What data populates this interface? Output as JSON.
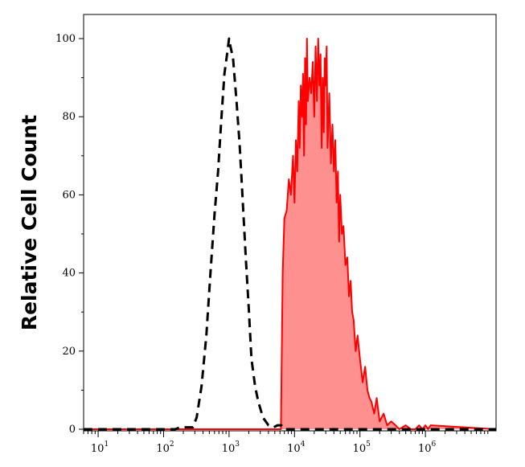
{
  "chart_data": {
    "type": "area",
    "title": "",
    "xlabel": "",
    "ylabel": "Relative Cell Count",
    "x_scale": "log",
    "xlim": [
      6,
      12000000
    ],
    "ylim": [
      0,
      100
    ],
    "x_ticks": [
      {
        "base": "10",
        "exp": "1"
      },
      {
        "base": "10",
        "exp": "2"
      },
      {
        "base": "10",
        "exp": "3"
      },
      {
        "base": "10",
        "exp": "4"
      },
      {
        "base": "10",
        "exp": "5"
      },
      {
        "base": "10",
        "exp": "6"
      }
    ],
    "y_ticks": [
      "0",
      "20",
      "40",
      "60",
      "80",
      "100"
    ],
    "grid": false,
    "legend": "none",
    "series": [
      {
        "style": "dashed",
        "color": "#000000",
        "fill": "none",
        "x": [
          6,
          150,
          180,
          220,
          280,
          320,
          380,
          450,
          520,
          600,
          680,
          760,
          850,
          950,
          1000,
          1050,
          1150,
          1300,
          1450,
          1600,
          1800,
          2000,
          2200,
          2500,
          2800,
          3300,
          4000,
          4800,
          5500,
          6300,
          7000,
          8000,
          12000000
        ],
        "y": [
          0,
          0,
          0.5,
          0.5,
          0.5,
          3,
          11,
          24,
          40,
          55,
          66,
          79,
          91,
          97,
          100,
          98,
          95,
          84,
          73,
          60,
          44,
          31,
          18,
          11,
          7,
          3,
          1,
          0.5,
          1,
          1,
          0,
          0,
          0
        ]
      },
      {
        "style": "solid",
        "color": "#ff0000",
        "fill": "#ff9090",
        "x": [
          6,
          6200,
          6600,
          7000,
          7600,
          8200,
          8800,
          9500,
          10000,
          10500,
          11000,
          11600,
          12000,
          12500,
          13000,
          13500,
          14000,
          14500,
          15000,
          15500,
          16000,
          17000,
          18000,
          19000,
          20000,
          21000,
          22000,
          23000,
          24000,
          25000,
          26000,
          27000,
          28000,
          29000,
          30000,
          31000,
          32000,
          34000,
          36000,
          38000,
          40000,
          42000,
          44000,
          46000,
          48000,
          50000,
          53000,
          56000,
          60000,
          64000,
          68000,
          72000,
          76000,
          80000,
          86000,
          92000,
          100000,
          110000,
          120000,
          130000,
          140000,
          150000,
          165000,
          180000,
          200000,
          230000,
          260000,
          300000,
          350000,
          400000,
          500000,
          600000,
          700000,
          800000,
          900000,
          1000000,
          1100000,
          1200000,
          12000000
        ],
        "y": [
          0,
          0,
          40,
          54,
          56,
          64,
          60,
          70,
          58,
          74,
          66,
          84,
          72,
          88,
          80,
          91,
          70,
          95,
          78,
          100,
          84,
          90,
          86,
          94,
          80,
          98,
          84,
          100,
          88,
          96,
          72,
          90,
          76,
          95,
          88,
          98,
          72,
          86,
          68,
          78,
          66,
          74,
          58,
          66,
          48,
          60,
          50,
          52,
          42,
          44,
          34,
          38,
          30,
          28,
          20,
          24,
          18,
          12,
          16,
          10,
          8,
          7,
          4,
          8,
          2,
          4,
          1,
          2,
          1,
          0,
          1,
          0,
          0,
          1,
          0,
          1,
          0,
          1,
          0
        ]
      }
    ]
  }
}
